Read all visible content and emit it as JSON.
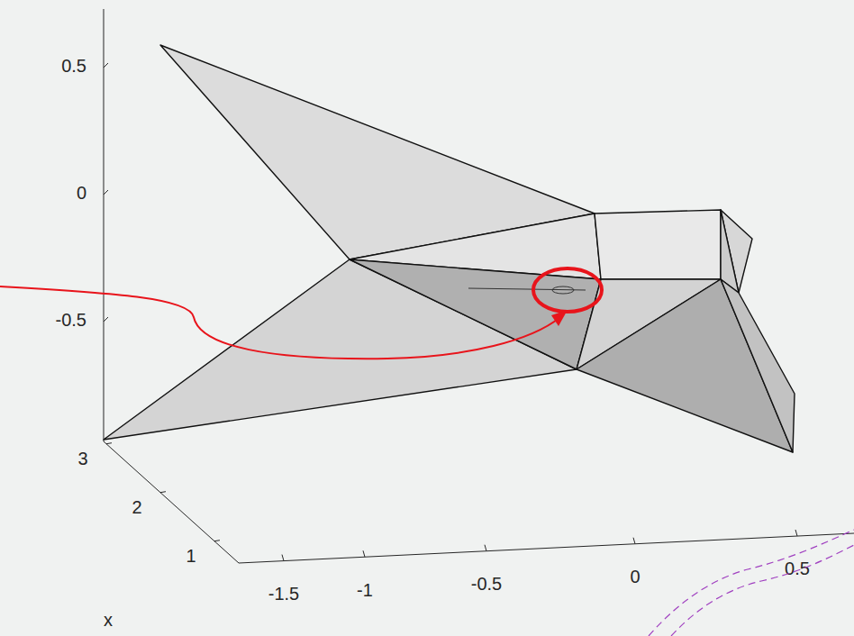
{
  "chart_data": {
    "type": "mesh3d",
    "vertical_axis": {
      "ticks": [
        {
          "value": 0.5,
          "label": "0.5"
        },
        {
          "value": 0,
          "label": "0"
        },
        {
          "value": -0.5,
          "label": "-0.5"
        }
      ]
    },
    "depth_axis": {
      "label": "x",
      "ticks": [
        {
          "value": 3,
          "label": "3"
        },
        {
          "value": 2,
          "label": "2"
        },
        {
          "value": 1,
          "label": "1"
        }
      ]
    },
    "horizontal_axis": {
      "ticks": [
        {
          "value": -1.5,
          "label": "-1.5"
        },
        {
          "value": -1,
          "label": "-1"
        },
        {
          "value": -0.5,
          "label": "-0.5"
        },
        {
          "value": 0,
          "label": "0"
        },
        {
          "value": 0.5,
          "label": "0.5"
        }
      ]
    }
  }
}
